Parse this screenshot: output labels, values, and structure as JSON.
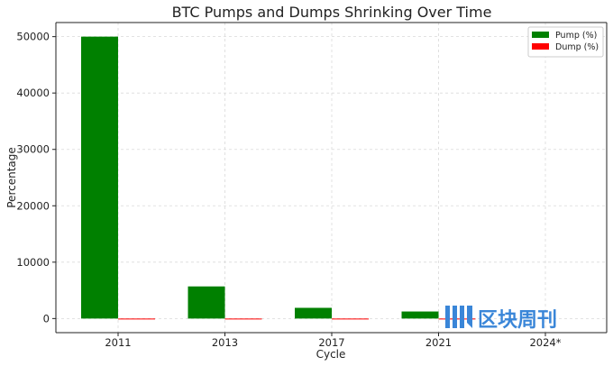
{
  "chart_data": {
    "type": "bar",
    "title": "BTC Pumps and Dumps Shrinking Over Time",
    "xlabel": "Cycle",
    "ylabel": "Percentage",
    "categories": [
      "2011",
      "2013",
      "2017",
      "2021",
      "2024*"
    ],
    "series": [
      {
        "name": "Pump (%)",
        "color": "#008000",
        "values": [
          50000,
          5700,
          1900,
          1250,
          0
        ]
      },
      {
        "name": "Dump (%)",
        "color": "#ff0000",
        "values": [
          -93,
          -85,
          -84,
          -77,
          0
        ]
      }
    ],
    "ylim": [
      -2500,
      52500
    ],
    "yticks": [
      0,
      10000,
      20000,
      30000,
      40000,
      50000
    ],
    "grid": true,
    "legend_position": "top-right"
  },
  "watermark": {
    "text": "区块周刊",
    "color": "#3a86d8",
    "icon": "blockchain-weekly-logo-icon"
  }
}
